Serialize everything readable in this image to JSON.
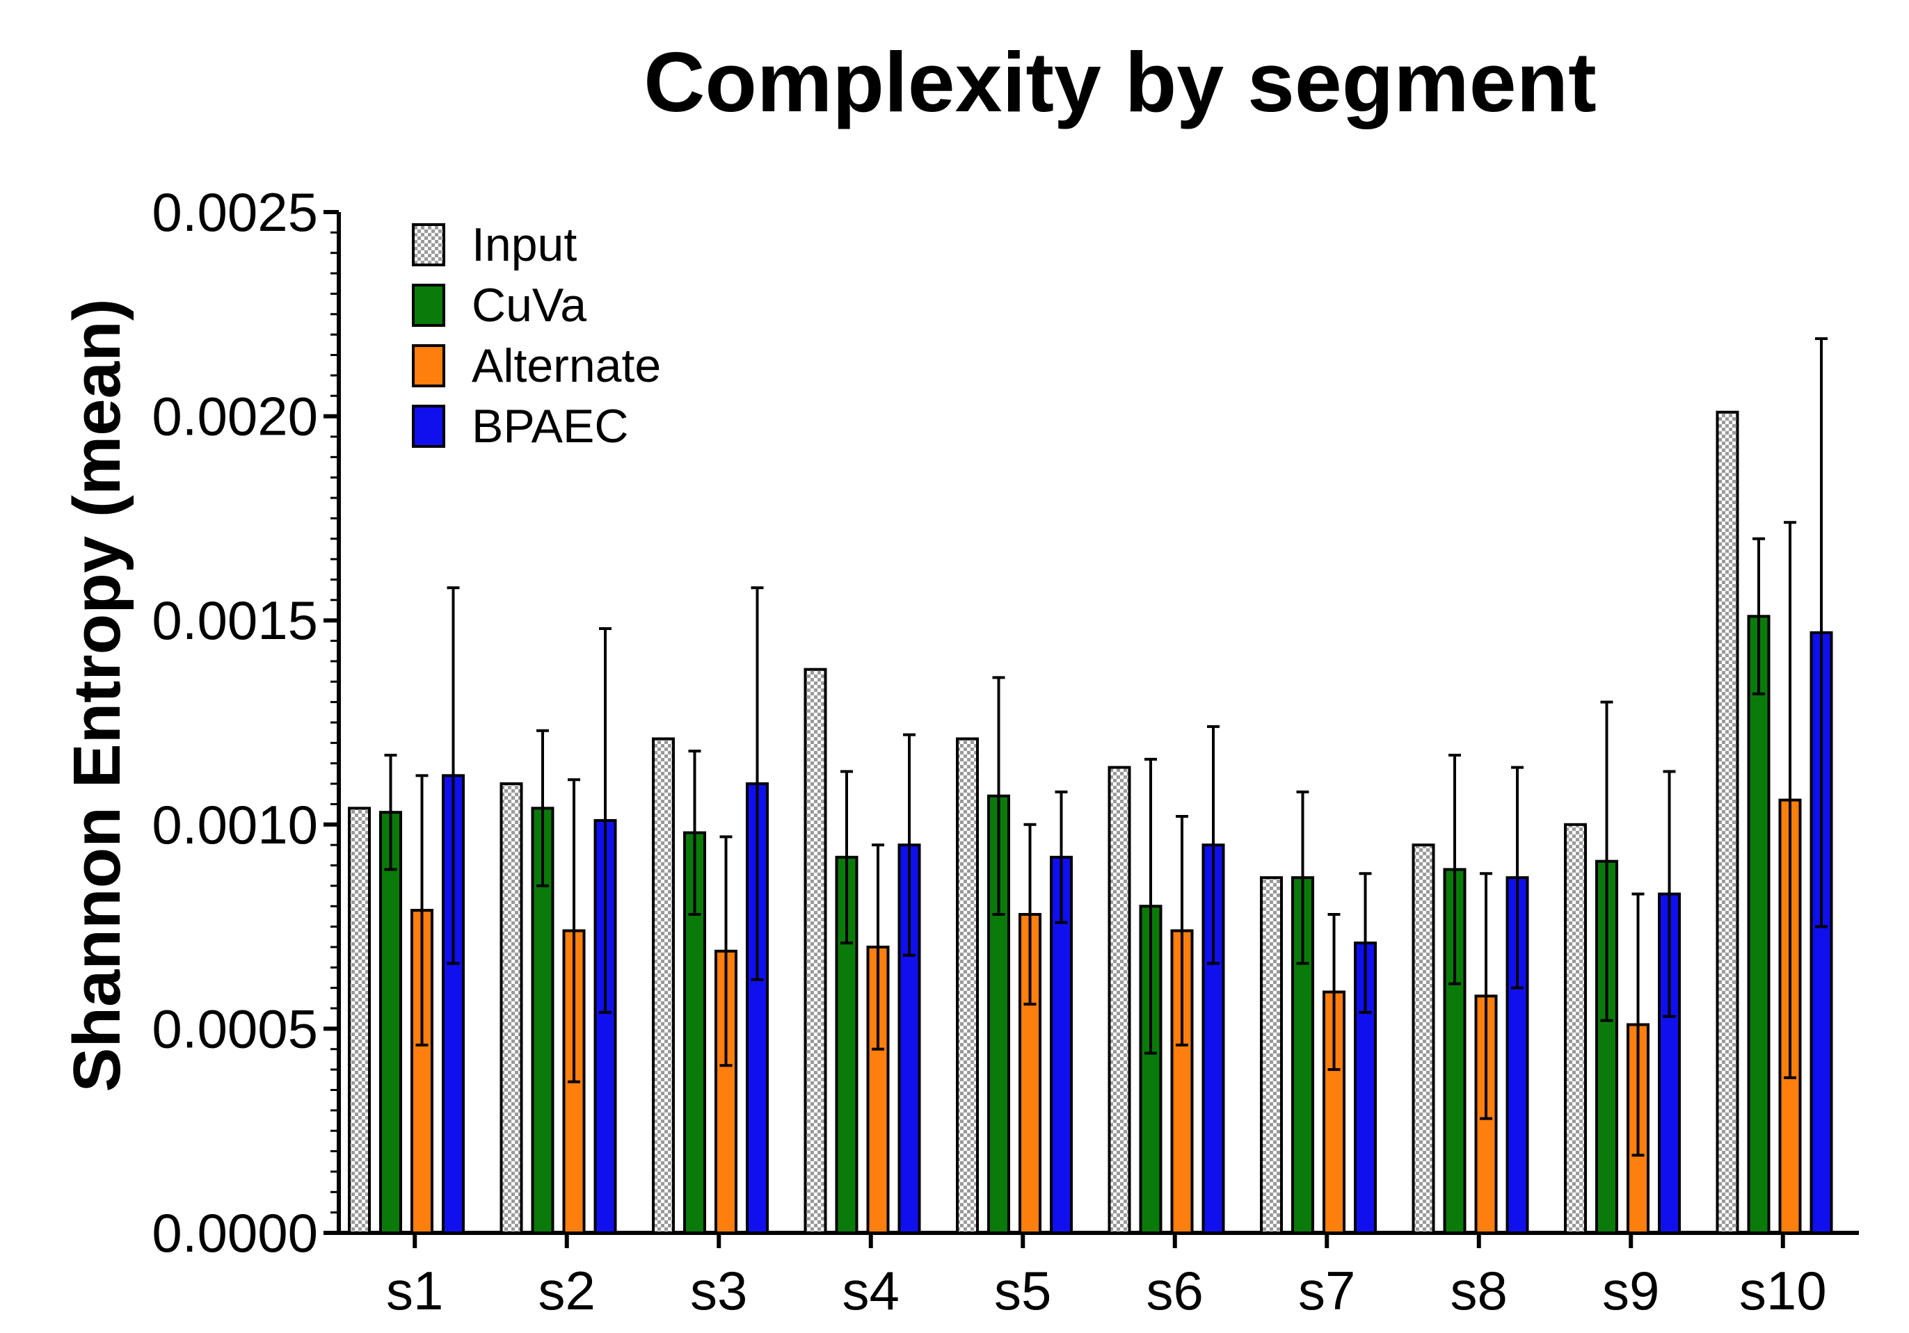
{
  "chart_data": {
    "type": "bar",
    "title": "Complexity by segment",
    "xlabel": "",
    "ylabel": "Shannon Entropy (mean)",
    "ylim": [
      0,
      0.0025
    ],
    "yticks": [
      "0.0000",
      "0.0005",
      "0.0010",
      "0.0015",
      "0.0020",
      "0.0025"
    ],
    "ytick_values": [
      0,
      0.0005,
      0.001,
      0.0015,
      0.002,
      0.0025
    ],
    "categories": [
      "s1",
      "s2",
      "s3",
      "s4",
      "s5",
      "s6",
      "s7",
      "s8",
      "s9",
      "s10"
    ],
    "legend_position": "top-left",
    "series": [
      {
        "name": "Input",
        "color": "#c8c8c8",
        "pattern": "checker",
        "values": [
          0.00104,
          0.0011,
          0.00121,
          0.00138,
          0.00121,
          0.00114,
          0.00087,
          0.00095,
          0.001,
          0.00201
        ],
        "errors": [
          null,
          null,
          null,
          null,
          null,
          null,
          null,
          null,
          null,
          null
        ]
      },
      {
        "name": "CuVa",
        "color": "#0a7a0a",
        "values": [
          0.00103,
          0.00104,
          0.00098,
          0.00092,
          0.00107,
          0.0008,
          0.00087,
          0.00089,
          0.00091,
          0.00151
        ],
        "errors": [
          0.00014,
          0.00019,
          0.0002,
          0.00021,
          0.00029,
          0.00036,
          0.00021,
          0.00028,
          0.00039,
          0.00019
        ]
      },
      {
        "name": "Alternate",
        "color": "#ff7f0e",
        "values": [
          0.00079,
          0.00074,
          0.00069,
          0.0007,
          0.00078,
          0.00074,
          0.00059,
          0.00058,
          0.00051,
          0.00106
        ],
        "errors": [
          0.00033,
          0.00037,
          0.00028,
          0.00025,
          0.00022,
          0.00028,
          0.00019,
          0.0003,
          0.00032,
          0.00068
        ]
      },
      {
        "name": "BPAEC",
        "color": "#1010ee",
        "values": [
          0.00112,
          0.00101,
          0.0011,
          0.00095,
          0.00092,
          0.00095,
          0.00071,
          0.00087,
          0.00083,
          0.00147
        ],
        "errors": [
          0.00046,
          0.00047,
          0.00048,
          0.00027,
          0.00016,
          0.00029,
          0.00017,
          0.00027,
          0.0003,
          0.00072
        ]
      }
    ]
  }
}
